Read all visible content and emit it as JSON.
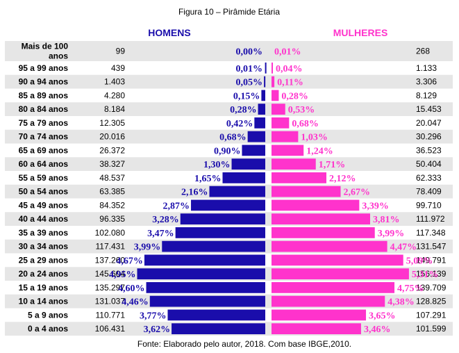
{
  "chart_data": {
    "type": "bar",
    "title": "Figura 10 – Pirâmide Etária",
    "source": "Fonte: Elaborado pelo autor, 2018. Com base IBGE,2010.",
    "series": [
      {
        "name": "HOMENS",
        "color": "#1a0dab",
        "counts": [
          "99",
          "439",
          "1.403",
          "4.280",
          "8.184",
          "12.305",
          "20.016",
          "26.372",
          "38.327",
          "48.537",
          "63.385",
          "84.352",
          "96.335",
          "102.080",
          "117.431",
          "137.260",
          "145.604",
          "135.297",
          "131.037",
          "110.771",
          "106.431"
        ],
        "values": [
          0.0,
          0.01,
          0.05,
          0.15,
          0.28,
          0.42,
          0.68,
          0.9,
          1.3,
          1.65,
          2.16,
          2.87,
          3.28,
          3.47,
          3.99,
          4.67,
          4.95,
          4.6,
          4.46,
          3.77,
          3.62
        ],
        "labels": [
          "0,00%",
          "0,01%",
          "0,05%",
          "0,15%",
          "0,28%",
          "0,42%",
          "0,68%",
          "0,90%",
          "1,30%",
          "1,65%",
          "2,16%",
          "2,87%",
          "3,28%",
          "3,47%",
          "3,99%",
          "4,67%",
          "4,95%",
          "4,60%",
          "4,46%",
          "3,77%",
          "3,62%"
        ]
      },
      {
        "name": "MULHERES",
        "color": "#ff33cc",
        "counts": [
          "268",
          "1.133",
          "3.306",
          "8.129",
          "15.453",
          "20.047",
          "30.296",
          "36.523",
          "50.404",
          "62.333",
          "78.409",
          "99.710",
          "111.972",
          "117.348",
          "131.547",
          "149.791",
          "156.139",
          "139.709",
          "128.825",
          "107.291",
          "101.599"
        ],
        "values": [
          0.01,
          0.04,
          0.11,
          0.28,
          0.53,
          0.68,
          1.03,
          1.24,
          1.71,
          2.12,
          2.67,
          3.39,
          3.81,
          3.99,
          4.47,
          5.09,
          5.31,
          4.75,
          4.38,
          3.65,
          3.46
        ],
        "labels": [
          "0,01%",
          "0,04%",
          "0,11%",
          "0,28%",
          "0,53%",
          "0,68%",
          "1,03%",
          "1,24%",
          "1,71%",
          "2,12%",
          "2,67%",
          "3,39%",
          "3,81%",
          "3,99%",
          "4,47%",
          "5,09%",
          "5,31%",
          "4,75%",
          "4,38%",
          "3,65%",
          "3,46%"
        ]
      }
    ],
    "categories": [
      "Mais de 100 anos",
      "95 a 99 anos",
      "90 a 94 anos",
      "85 a 89 anos",
      "80 a 84 anos",
      "75 a 79 anos",
      "70 a 74 anos",
      "65 a 69 anos",
      "60 a 64 anos",
      "55 a 59 anos",
      "50 a 54 anos",
      "45 a 49 anos",
      "40 a 44 anos",
      "35 a 39 anos",
      "30 a 34 anos",
      "25 a 29 anos",
      "20 a 24 anos",
      "15 a 19 anos",
      "10 a 14 anos",
      "5 a 9 anos",
      "0 a 4 anos"
    ],
    "category_lines": [
      [
        "Mais de 100",
        "anos"
      ]
    ],
    "xlim": [
      0,
      5.5
    ],
    "xunit": "%"
  }
}
